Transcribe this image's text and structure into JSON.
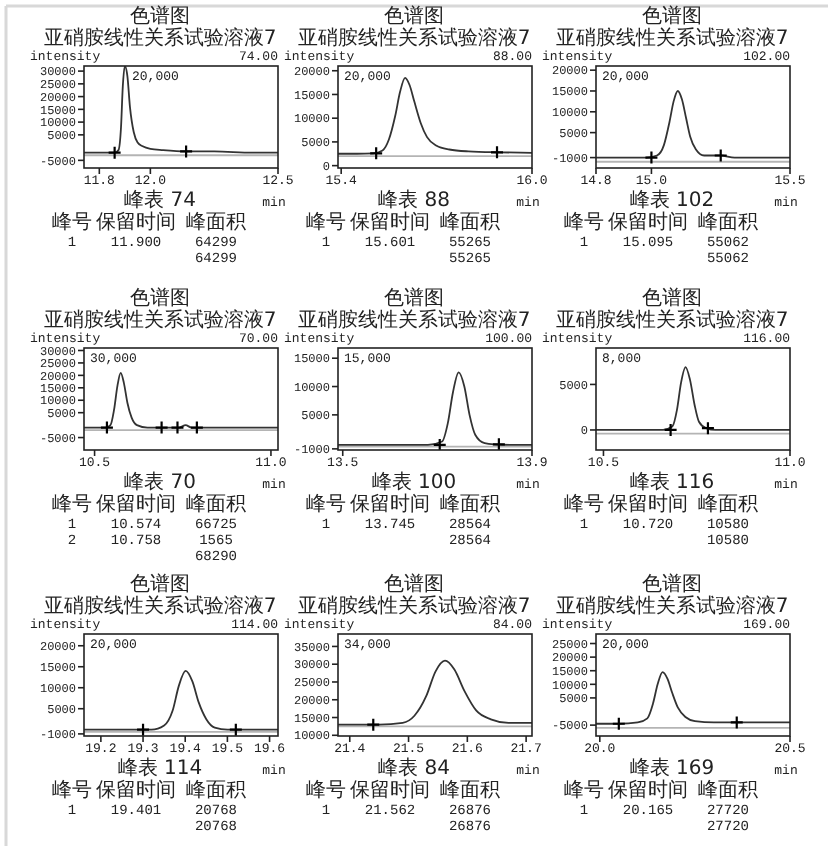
{
  "chart_data": [
    {
      "type": "line",
      "title": "色谱图",
      "subtitle": "亚硝胺线性关系试验溶液7",
      "xlabel": "min",
      "ylabel": "intensity",
      "xlim": [
        11.74,
        12.5
      ],
      "ylim": [
        -8000,
        32000
      ],
      "xticks": [
        11.8,
        {
          "value": 12,
          "label": "12.0"
        },
        12.5
      ],
      "yticks": [
        -5000,
        5000,
        10000,
        15000,
        20000,
        25000,
        30000
      ],
      "series": [
        {
          "color": "#333333",
          "x": [
            11.74,
            11.8,
            11.86,
            11.875,
            11.885,
            11.892,
            11.9,
            11.91,
            11.92,
            11.935,
            11.95,
            11.97,
            12.0,
            12.05,
            12.14,
            12.25,
            12.4,
            12.5
          ],
          "values": [
            -2000,
            -2000,
            -2000,
            -1000,
            8000,
            24000,
            32000,
            28000,
            16000,
            6000,
            2000,
            500,
            -500,
            -1000,
            -1500,
            -1500,
            -2000,
            -2000
          ]
        },
        {
          "type": "scatter",
          "marker": "cross",
          "color": "#000000",
          "x": [
            11.86,
            12.14
          ],
          "values": [
            -2000,
            -1500
          ]
        }
      ],
      "ref_lines": [
        {
          "axis": "y",
          "value": -3000,
          "color": "#b4b4b4"
        }
      ],
      "annotations": [
        "74.00",
        "20,000",
        "峰表 74",
        "峰号",
        "保留时间",
        "峰面积",
        "1",
        "11.900",
        "64299",
        "64299"
      ]
    },
    {
      "type": "line",
      "title": "色谱图",
      "subtitle": "亚硝胺线性关系试验溶液7",
      "xlabel": "min",
      "ylabel": "intensity",
      "xlim": [
        15.39,
        16.0
      ],
      "ylim": [
        -500,
        21000
      ],
      "xticks": [
        15.4,
        {
          "value": 16,
          "label": "16.0"
        }
      ],
      "yticks": [
        0,
        5000,
        10000,
        15000,
        20000
      ],
      "series": [
        {
          "color": "#333333",
          "x": [
            15.39,
            15.45,
            15.5,
            15.53,
            15.55,
            15.57,
            15.585,
            15.601,
            15.615,
            15.63,
            15.65,
            15.67,
            15.7,
            15.74,
            15.8,
            15.9,
            16.0
          ],
          "values": [
            2500,
            2500,
            2600,
            3200,
            5500,
            10500,
            15500,
            18500,
            17000,
            13500,
            9000,
            6000,
            4200,
            3400,
            3000,
            2800,
            2700
          ]
        },
        {
          "type": "scatter",
          "marker": "cross",
          "color": "#000000",
          "x": [
            15.51,
            15.89
          ],
          "values": [
            2600,
            2800
          ]
        }
      ],
      "ref_lines": [
        {
          "axis": "y",
          "value": 2000,
          "color": "#b4b4b4"
        }
      ],
      "annotations": [
        "88.00",
        "20,000",
        "峰表 88",
        "峰号",
        "保留时间",
        "峰面积",
        "1",
        "15.601",
        "55265",
        "55265"
      ]
    },
    {
      "type": "line",
      "title": "色谱图",
      "subtitle": "亚硝胺线性关系试验溶液7",
      "xlabel": "min",
      "ylabel": "intensity",
      "xlim": [
        14.8,
        15.5
      ],
      "ylim": [
        -3500,
        21000
      ],
      "xticks": [
        14.8,
        {
          "value": 15,
          "label": "15.0"
        },
        15.5
      ],
      "yticks": [
        -1000,
        5000,
        10000,
        15000,
        20000
      ],
      "series": [
        {
          "color": "#333333",
          "x": [
            14.8,
            14.9,
            14.98,
            15.02,
            15.045,
            15.065,
            15.08,
            15.095,
            15.11,
            15.125,
            15.14,
            15.16,
            15.19,
            15.25,
            15.3,
            15.4,
            15.5
          ],
          "values": [
            -1000,
            -1000,
            -1000,
            -500,
            2000,
            7500,
            12500,
            15000,
            13000,
            8500,
            4000,
            1000,
            -500,
            -500,
            -1000,
            -1000,
            -1000
          ]
        },
        {
          "type": "scatter",
          "marker": "cross",
          "color": "#000000",
          "x": [
            15.0,
            15.25
          ],
          "values": [
            -1000,
            -500
          ]
        }
      ],
      "ref_lines": [
        {
          "axis": "y",
          "value": -2000,
          "color": "#b4b4b4"
        }
      ],
      "annotations": [
        "102.00",
        "20,000",
        "峰表 102",
        "峰号",
        "保留时间",
        "峰面积",
        "1",
        "15.095",
        "55062",
        "55062"
      ]
    },
    {
      "type": "line",
      "title": "色谱图",
      "subtitle": "亚硝胺线性关系试验溶液7",
      "xlabel": "min",
      "ylabel": "intensity",
      "xlim": [
        10.47,
        11.02
      ],
      "ylim": [
        -10000,
        31000
      ],
      "xticks": [
        10.5,
        {
          "value": 11,
          "label": "11.0"
        }
      ],
      "yticks": [
        -5000,
        5000,
        10000,
        15000,
        20000,
        25000,
        30000
      ],
      "series": [
        {
          "color": "#333333",
          "x": [
            10.47,
            10.5,
            10.53,
            10.545,
            10.555,
            10.565,
            10.574,
            10.583,
            10.593,
            10.605,
            10.62,
            10.65,
            10.7,
            10.74,
            10.758,
            10.775,
            10.82,
            10.9,
            11.02
          ],
          "values": [
            -1000,
            -1000,
            -1000,
            0,
            6000,
            16000,
            21000,
            17000,
            9000,
            3000,
            0,
            -1000,
            -1000,
            -1000,
            0,
            -1000,
            -1000,
            -1000,
            -1000
          ]
        },
        {
          "type": "scatter",
          "marker": "cross",
          "color": "#000000",
          "x": [
            10.535,
            10.69,
            10.735,
            10.79
          ],
          "values": [
            -1000,
            -1000,
            -1000,
            -1000
          ]
        }
      ],
      "ref_lines": [
        {
          "axis": "y",
          "value": -2000,
          "color": "#b4b4b4"
        }
      ],
      "annotations": [
        "70.00",
        "30,000",
        "峰表 70",
        "峰号",
        "保留时间",
        "峰面积",
        "1",
        "10.574",
        "66725",
        "2",
        "10.758",
        "1565",
        "68290"
      ]
    },
    {
      "type": "line",
      "title": "色谱图",
      "subtitle": "亚硝胺线性关系试验溶液7",
      "xlabel": "min",
      "ylabel": "intensity",
      "xlim": [
        13.49,
        13.9
      ],
      "ylim": [
        -1200,
        16800
      ],
      "xticks": [
        13.5,
        13.9
      ],
      "yticks": [
        -1000,
        5000,
        10000,
        15000
      ],
      "series": [
        {
          "color": "#333333",
          "x": [
            13.49,
            13.6,
            13.68,
            13.71,
            13.722,
            13.733,
            13.745,
            13.757,
            13.768,
            13.78,
            13.8,
            13.82,
            13.86,
            13.9
          ],
          "values": [
            -300,
            -300,
            -300,
            300,
            3500,
            9000,
            12500,
            10000,
            5000,
            1500,
            0,
            -200,
            -300,
            -300
          ]
        },
        {
          "type": "scatter",
          "marker": "cross",
          "color": "#000000",
          "x": [
            13.705,
            13.83
          ],
          "values": [
            -300,
            -200
          ]
        }
      ],
      "ref_lines": [
        {
          "axis": "y",
          "value": -600,
          "color": "#b4b4b4"
        }
      ],
      "annotations": [
        "100.00",
        "15,000",
        "峰表 100",
        "峰号",
        "保留时间",
        "峰面积",
        "1",
        "13.745",
        "28564",
        "28564"
      ]
    },
    {
      "type": "line",
      "title": "色谱图",
      "subtitle": "亚硝胺线性关系试验溶液7",
      "xlabel": "min",
      "ylabel": "intensity",
      "xlim": [
        10.48,
        11.0
      ],
      "ylim": [
        -2200,
        9000
      ],
      "xticks": [
        10.5,
        {
          "value": 11,
          "label": "11.0"
        }
      ],
      "yticks": [
        0,
        5000
      ],
      "series": [
        {
          "color": "#333333",
          "x": [
            10.48,
            10.6,
            10.66,
            10.685,
            10.697,
            10.708,
            10.72,
            10.732,
            10.744,
            10.756,
            10.775,
            10.8,
            10.9,
            11.0
          ],
          "values": [
            0,
            0,
            0,
            400,
            2200,
            5200,
            6900,
            5500,
            2800,
            900,
            200,
            0,
            0,
            0
          ]
        },
        {
          "type": "scatter",
          "marker": "cross",
          "color": "#000000",
          "x": [
            10.68,
            10.78
          ],
          "values": [
            0,
            200
          ]
        }
      ],
      "ref_lines": [
        {
          "axis": "y",
          "value": -400,
          "color": "#b4b4b4"
        }
      ],
      "annotations": [
        "116.00",
        "8,000",
        "峰表 116",
        "峰号",
        "保留时间",
        "峰面积",
        "1",
        "10.720",
        "10580",
        "10580"
      ]
    },
    {
      "type": "line",
      "title": "色谱图",
      "subtitle": "亚硝胺线性关系试验溶液7",
      "xlabel": "min",
      "ylabel": "intensity",
      "xlim": [
        19.16,
        19.62
      ],
      "ylim": [
        -1500,
        22800
      ],
      "xticks": [
        19.2,
        19.3,
        19.4,
        19.5,
        19.6
      ],
      "yticks": [
        -1000,
        5000,
        10000,
        15000,
        20000
      ],
      "series": [
        {
          "color": "#333333",
          "x": [
            19.16,
            19.25,
            19.32,
            19.35,
            19.37,
            19.385,
            19.401,
            19.417,
            19.432,
            19.45,
            19.47,
            19.5,
            19.55,
            19.62
          ],
          "values": [
            0,
            0,
            0,
            1000,
            4500,
            10500,
            14000,
            11500,
            6500,
            2500,
            500,
            0,
            0,
            0
          ]
        },
        {
          "type": "scatter",
          "marker": "cross",
          "color": "#000000",
          "x": [
            19.3,
            19.52
          ],
          "values": [
            0,
            0
          ]
        }
      ],
      "ref_lines": [
        {
          "axis": "y",
          "value": -500,
          "color": "#b4b4b4"
        }
      ],
      "annotations": [
        "114.00",
        "20,000",
        "峰表 114",
        "峰号",
        "保留时间",
        "峰面积",
        "1",
        "19.401",
        "20768",
        "20768"
      ]
    },
    {
      "type": "line",
      "title": "色谱图",
      "subtitle": "亚硝胺线性关系试验溶液7",
      "xlabel": "min",
      "ylabel": "intensity",
      "xlim": [
        21.38,
        21.71
      ],
      "ylim": [
        9800,
        38500
      ],
      "xticks": [
        21.4,
        21.5,
        21.6,
        21.7
      ],
      "yticks": [
        10000,
        15000,
        20000,
        25000,
        30000,
        35000
      ],
      "series": [
        {
          "color": "#333333",
          "x": [
            21.38,
            21.45,
            21.49,
            21.51,
            21.53,
            21.546,
            21.562,
            21.578,
            21.595,
            21.615,
            21.64,
            21.67,
            21.71
          ],
          "values": [
            13000,
            13000,
            13500,
            15500,
            21000,
            28000,
            31000,
            28500,
            22500,
            17000,
            14500,
            13500,
            13500
          ]
        },
        {
          "type": "scatter",
          "marker": "cross",
          "color": "#000000",
          "x": [
            21.44
          ],
          "values": [
            13000
          ]
        }
      ],
      "ref_lines": [
        {
          "axis": "y",
          "value": 12500,
          "color": "#b4b4b4"
        }
      ],
      "annotations": [
        "84.00",
        "34,000",
        "峰表 84",
        "峰号",
        "保留时间",
        "峰面积",
        "1",
        "21.562",
        "26876",
        "26876"
      ]
    },
    {
      "type": "line",
      "title": "色谱图",
      "subtitle": "亚硝胺线性关系试验溶液7",
      "xlabel": "min",
      "ylabel": "intensity",
      "xlim": [
        19.99,
        20.5
      ],
      "ylim": [
        -9000,
        28500
      ],
      "xticks": [
        {
          "value": 20,
          "label": "20.0"
        },
        20.5
      ],
      "yticks": [
        -5000,
        5000,
        10000,
        15000,
        20000,
        25000
      ],
      "series": [
        {
          "color": "#333333",
          "x": [
            19.99,
            20.05,
            20.1,
            20.125,
            20.14,
            20.152,
            20.165,
            20.178,
            20.19,
            20.205,
            20.225,
            20.25,
            20.3,
            20.36,
            20.45,
            20.5
          ],
          "values": [
            -4500,
            -4500,
            -4000,
            -2500,
            3000,
            10000,
            14500,
            12000,
            7000,
            1500,
            -2000,
            -3500,
            -4000,
            -4000,
            -4000,
            -4000
          ]
        },
        {
          "type": "scatter",
          "marker": "cross",
          "color": "#000000",
          "x": [
            20.05,
            20.36
          ],
          "values": [
            -4500,
            -4000
          ]
        }
      ],
      "ref_lines": [
        {
          "axis": "y",
          "value": -6000,
          "color": "#b4b4b4"
        }
      ],
      "annotations": [
        "169.00",
        "20,000",
        "峰表 169",
        "峰号",
        "保留时间",
        "峰面积",
        "1",
        "20.165",
        "27720",
        "27720"
      ]
    }
  ]
}
